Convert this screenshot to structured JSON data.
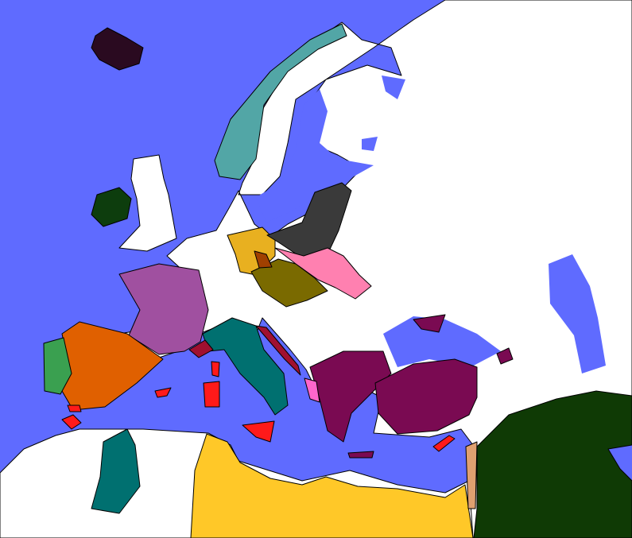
{
  "map": {
    "colors": {
      "sea": "#5f6bff",
      "land": "#ffffff",
      "border": "#000000",
      "iceland": "#2a0a20",
      "ireland": "#0d3d0d",
      "norway": "#52a6a6",
      "france": "#a050a0",
      "spain": "#e06000",
      "portugal": "#3aa050",
      "italy": "#007070",
      "red": "#ff1a1a",
      "dalmatia": "#a01030",
      "ottoman": "#7a0a52",
      "albania": "#ff66cc",
      "hanover": "#e8b020",
      "brunswick": "#a04000",
      "saxony": "#7a6a00",
      "prussia": "#3a3a3a",
      "poland": "#ff80b0",
      "algeria": "#007070",
      "egypt": "#ffc828",
      "levant": "#e0a070",
      "persia": "#0f3a05"
    }
  }
}
